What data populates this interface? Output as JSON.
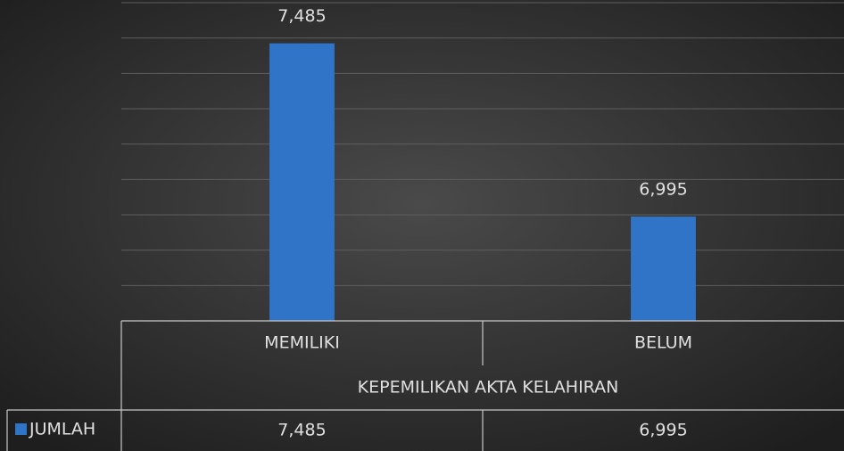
{
  "chart_data": {
    "type": "bar",
    "categories": [
      "MEMILIKI",
      "BELUM"
    ],
    "x_label": "KEPEMILIKAN AKTA KELAHIRAN",
    "series": [
      {
        "name": "JUMLAH",
        "color": "#2f74c6",
        "values": [
          7485,
          6995
        ],
        "value_labels": [
          "7,485",
          "6,995"
        ]
      }
    ],
    "ylim": [
      6700,
      7600
    ],
    "yticks": [
      6700,
      6800,
      6900,
      7000,
      7100,
      7200,
      7300,
      7400,
      7500,
      7600
    ],
    "ytick_labels": false,
    "grid": true,
    "data_table": true
  }
}
